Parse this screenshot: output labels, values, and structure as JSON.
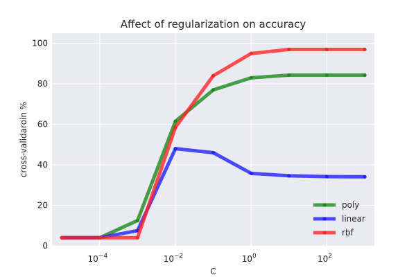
{
  "chart_data": {
    "type": "line",
    "title": "Affect of regularization on accuracy",
    "xlabel": "C",
    "ylabel": "cross-validaroin %",
    "xscale": "log",
    "x": [
      1e-05,
      0.0001,
      0.001,
      0.01,
      0.1,
      1,
      10,
      100,
      1000
    ],
    "xlim": [
      5.5e-06,
      1800
    ],
    "ylim": [
      0,
      105
    ],
    "x_ticks": [
      {
        "value": 0.0001,
        "base": "10",
        "exp": "−4"
      },
      {
        "value": 0.01,
        "base": "10",
        "exp": "−2"
      },
      {
        "value": 1,
        "base": "10",
        "exp": "0"
      },
      {
        "value": 100,
        "base": "10",
        "exp": "2"
      }
    ],
    "y_ticks": [
      0,
      20,
      40,
      60,
      80,
      100
    ],
    "grid": true,
    "legend_position": "lower-right",
    "series": [
      {
        "name": "poly",
        "color": "#1a8a1a",
        "values": [
          4,
          4,
          12.5,
          61.5,
          77,
          83,
          84.3,
          84.3,
          84.3
        ]
      },
      {
        "name": "linear",
        "color": "#1f1fff",
        "values": [
          4,
          4,
          7.5,
          48,
          46,
          35.8,
          34.6,
          34.2,
          34.1
        ]
      },
      {
        "name": "rbf",
        "color": "#ff2424",
        "values": [
          4,
          4,
          4,
          58.5,
          84,
          95,
          97,
          97,
          97
        ]
      }
    ]
  }
}
